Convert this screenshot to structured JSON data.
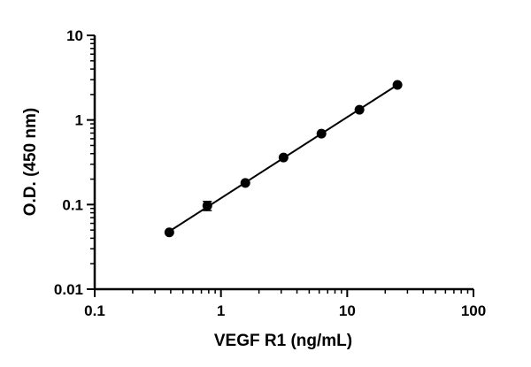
{
  "chart_data": {
    "type": "scatter",
    "xlabel": "VEGF R1 (ng/mL)",
    "ylabel": "O.D. (450 nm)",
    "xscale": "log",
    "yscale": "log",
    "xlim": [
      0.1,
      100
    ],
    "ylim": [
      0.01,
      10
    ],
    "xticks": [
      {
        "value": 0.1,
        "label": "0.1"
      },
      {
        "value": 1,
        "label": "1"
      },
      {
        "value": 10,
        "label": "10"
      },
      {
        "value": 100,
        "label": "100"
      }
    ],
    "yticks": [
      {
        "value": 0.01,
        "label": "0.01"
      },
      {
        "value": 0.1,
        "label": "0.1"
      },
      {
        "value": 1,
        "label": "1"
      },
      {
        "value": 10,
        "label": "10"
      }
    ],
    "grid": false,
    "fit_line": true,
    "series": [
      {
        "points": [
          {
            "x": 0.39,
            "y": 0.047,
            "err": 0.002
          },
          {
            "x": 0.78,
            "y": 0.097,
            "err": 0.012
          },
          {
            "x": 1.56,
            "y": 0.18,
            "err": 0.005
          },
          {
            "x": 3.13,
            "y": 0.36,
            "err": 0.01
          },
          {
            "x": 6.25,
            "y": 0.69,
            "err": 0.02
          },
          {
            "x": 12.5,
            "y": 1.32,
            "err": 0.03
          },
          {
            "x": 25,
            "y": 2.6,
            "err": 0.05
          }
        ]
      }
    ]
  }
}
